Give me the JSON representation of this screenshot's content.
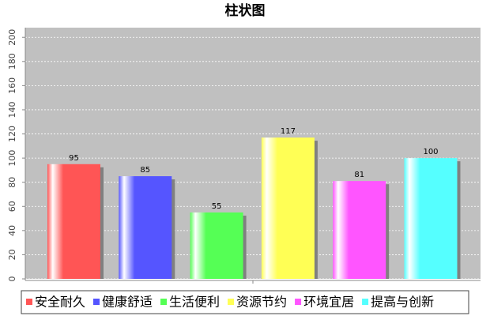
{
  "chart_data": {
    "type": "bar",
    "title": "柱状图",
    "categories": [
      null
    ],
    "series": [
      {
        "name": "安全耐久",
        "color": "#ff5555",
        "values": [
          95
        ]
      },
      {
        "name": "健康舒适",
        "color": "#5555ff",
        "values": [
          85
        ]
      },
      {
        "name": "生活便利",
        "color": "#55ff55",
        "values": [
          55
        ]
      },
      {
        "name": "资源节约",
        "color": "#ffff55",
        "values": [
          117
        ]
      },
      {
        "name": "环境宜居",
        "color": "#ff55ff",
        "values": [
          81
        ]
      },
      {
        "name": "提高与创新",
        "color": "#55ffff",
        "values": [
          100
        ]
      }
    ],
    "ylim": [
      0,
      208
    ],
    "yticks": [
      0,
      20,
      40,
      60,
      80,
      100,
      120,
      140,
      160,
      180,
      200
    ],
    "grid": true,
    "legend": "bottom"
  }
}
